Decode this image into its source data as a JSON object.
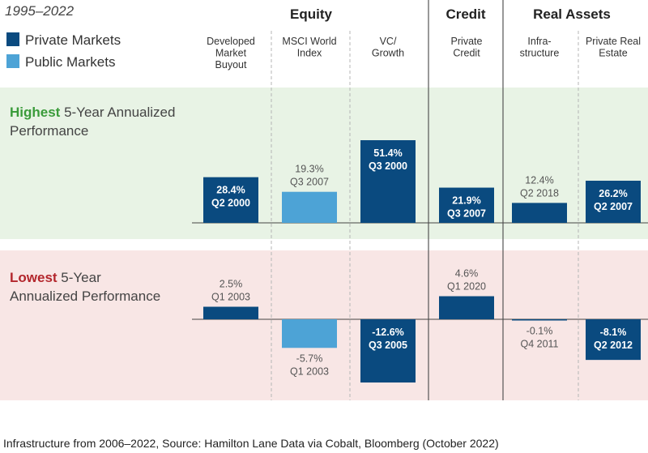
{
  "period_label": "1995–2022",
  "legend": [
    {
      "label": "Private Markets",
      "color": "#0a4a7f"
    },
    {
      "label": "Public Markets",
      "color": "#4da3d6"
    }
  ],
  "groups": [
    {
      "label": "Equity"
    },
    {
      "label": "Credit"
    },
    {
      "label": "Real Assets"
    }
  ],
  "columns": [
    {
      "lines": [
        "Developed",
        "Market",
        "Buyout"
      ]
    },
    {
      "lines": [
        "MSCI World",
        "Index"
      ]
    },
    {
      "lines": [
        "VC/",
        "Growth"
      ]
    },
    {
      "lines": [
        "Private",
        "Credit"
      ]
    },
    {
      "lines": [
        "Infra-",
        "structure"
      ]
    },
    {
      "lines": [
        "Private Real",
        "Estate"
      ]
    }
  ],
  "panels": {
    "highest": {
      "keyword": "Highest",
      "rest_line1": " 5-Year Annualized",
      "line2": "Performance",
      "keyword_color": "#3a9b3a",
      "bg": "#e8f3e5"
    },
    "lowest": {
      "keyword": "Lowest",
      "rest_line1": " 5-Year",
      "line2": "Annualized Performance",
      "keyword_color": "#b3262c",
      "bg": "#f8e6e5"
    }
  },
  "colors": {
    "private": "#0a4a7f",
    "public": "#4da3d6",
    "text": "#333333",
    "label_gray": "#555555",
    "divider": "#555555"
  },
  "footnote": "Infrastructure from 2006–2022, Source: Hamilton Lane Data via Cobalt, Bloomberg (October 2022)",
  "chart_data": [
    {
      "type": "bar",
      "title": "Highest 5-Year Annualized Performance",
      "categories": [
        "Developed Market Buyout",
        "MSCI World Index",
        "VC/Growth",
        "Private Credit",
        "Infrastructure",
        "Private Real Estate"
      ],
      "values": [
        28.4,
        19.3,
        51.4,
        21.9,
        12.4,
        26.2
      ],
      "value_labels": [
        "28.4%",
        "19.3%",
        "51.4%",
        "21.9%",
        "12.4%",
        "26.2%"
      ],
      "period_labels": [
        "Q2 2000",
        "Q3 2007",
        "Q3 2000",
        "Q3 2007",
        "Q2 2018",
        "Q2 2007"
      ],
      "market": [
        "private",
        "public",
        "private",
        "private",
        "private",
        "private"
      ]
    },
    {
      "type": "bar",
      "title": "Lowest 5-Year Annualized Performance",
      "categories": [
        "Developed Market Buyout",
        "MSCI World Index",
        "VC/Growth",
        "Private Credit",
        "Infrastructure",
        "Private Real Estate"
      ],
      "values": [
        2.5,
        -5.7,
        -12.6,
        4.6,
        -0.1,
        -8.1
      ],
      "value_labels": [
        "2.5%",
        "-5.7%",
        "-12.6%",
        "4.6%",
        "-0.1%",
        "-8.1%"
      ],
      "period_labels": [
        "Q1 2003",
        "Q1 2003",
        "Q3 2005",
        "Q1 2020",
        "Q4 2011",
        "Q2 2012"
      ],
      "market": [
        "private",
        "public",
        "private",
        "private",
        "private",
        "private"
      ]
    }
  ]
}
